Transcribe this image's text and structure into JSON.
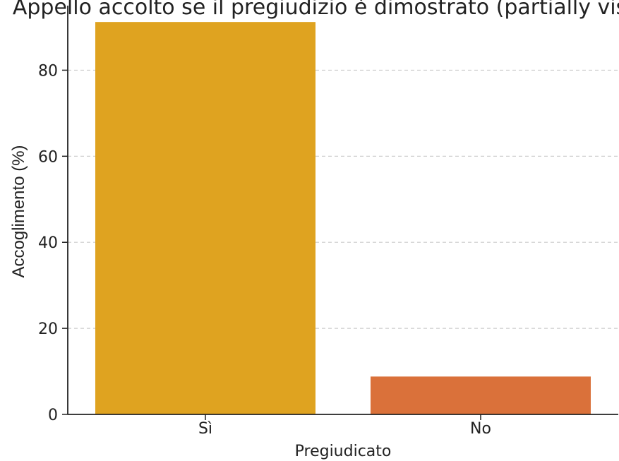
{
  "chart_data": {
    "type": "bar",
    "title": "Appello accolto se il pregiudizio è dimostrato (partially visible)",
    "xlabel": "Pregiudicato",
    "ylabel": "Accoglimento (%)",
    "categories": [
      "Sì",
      "No"
    ],
    "values": [
      91.2,
      8.8
    ],
    "colors": [
      "#DFA320",
      "#DA713A"
    ],
    "ylim": [
      0,
      95
    ],
    "yticks": [
      0,
      20,
      40,
      60,
      80
    ],
    "grid": "y-dashed",
    "legend": "none"
  }
}
